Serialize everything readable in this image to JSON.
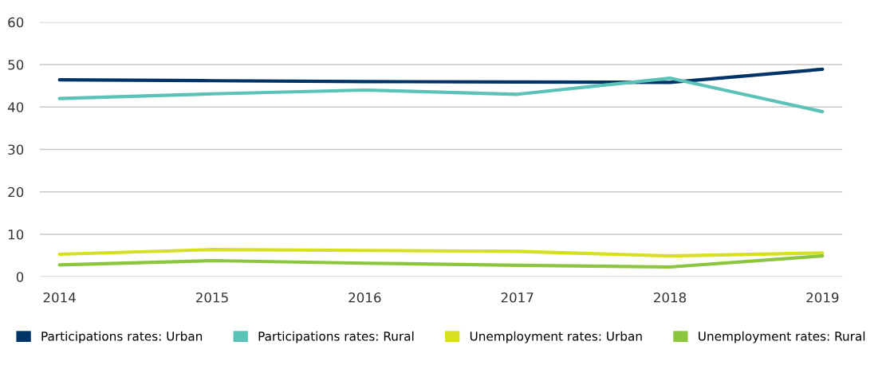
{
  "chart_data": {
    "type": "line",
    "categories": [
      "2014",
      "2015",
      "2016",
      "2017",
      "2018",
      "2019"
    ],
    "series": [
      {
        "name": "Participations rates: Urban",
        "color": "#003366",
        "values": [
          46.4,
          46.2,
          46.0,
          45.9,
          45.8,
          48.9
        ]
      },
      {
        "name": "Participations rates: Rural",
        "color": "#5bc2b8",
        "values": [
          42.0,
          43.1,
          44.0,
          43.0,
          46.8,
          38.9
        ]
      },
      {
        "name": "Unemployment rates: Urban",
        "color": "#d6df23",
        "values": [
          5.3,
          6.4,
          6.2,
          6.0,
          4.9,
          5.6
        ]
      },
      {
        "name": "Unemployment rates: Rural",
        "color": "#8cc63f",
        "values": [
          2.8,
          3.8,
          3.2,
          2.7,
          2.3,
          4.9
        ]
      }
    ],
    "ylim": [
      0,
      60
    ],
    "yticks": [
      0,
      10,
      20,
      30,
      40,
      50,
      60
    ],
    "grid": "y",
    "legend": "bottom",
    "marker": "none",
    "line_style": "solid"
  }
}
